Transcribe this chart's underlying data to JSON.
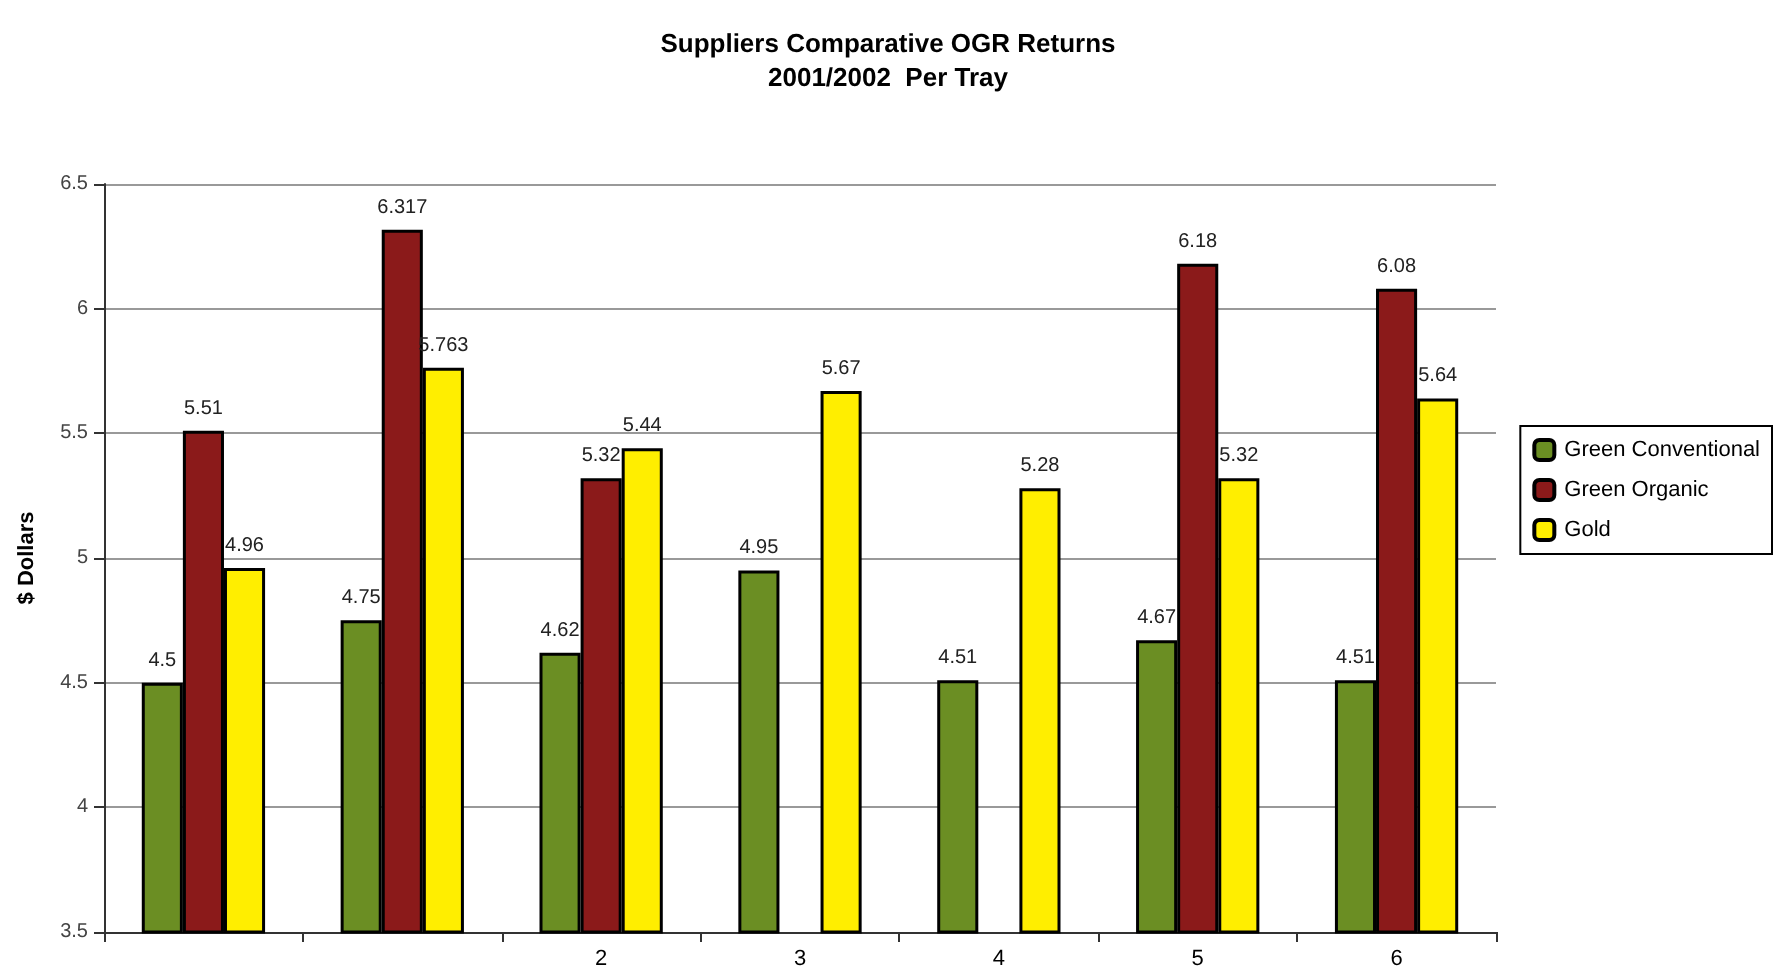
{
  "chart_data": {
    "type": "bar",
    "title": "Suppliers Comparative OGR Returns",
    "subtitle": "2001/2002  Per Tray",
    "ylabel": "$ Dollars",
    "categories": [
      null,
      null,
      "2",
      "3",
      "4",
      "5",
      "6"
    ],
    "series": [
      {
        "name": "Green Conventional",
        "color": "#6b8e23",
        "values": [
          4.5,
          4.75,
          4.62,
          4.95,
          4.51,
          4.67,
          4.51
        ]
      },
      {
        "name": "Green Organic",
        "color": "#8b1a1a",
        "values": [
          5.51,
          6.317,
          5.32,
          null,
          null,
          6.18,
          6.08
        ]
      },
      {
        "name": "Gold",
        "color": "#ffee00",
        "values": [
          4.96,
          5.763,
          5.44,
          5.67,
          5.28,
          5.32,
          5.64
        ]
      }
    ],
    "ylim": [
      3.5,
      6.5
    ],
    "yticks": [
      3.5,
      4,
      4.5,
      5,
      5.5,
      6,
      6.5
    ],
    "grid": "y",
    "legend": "right",
    "data_labels": true
  }
}
